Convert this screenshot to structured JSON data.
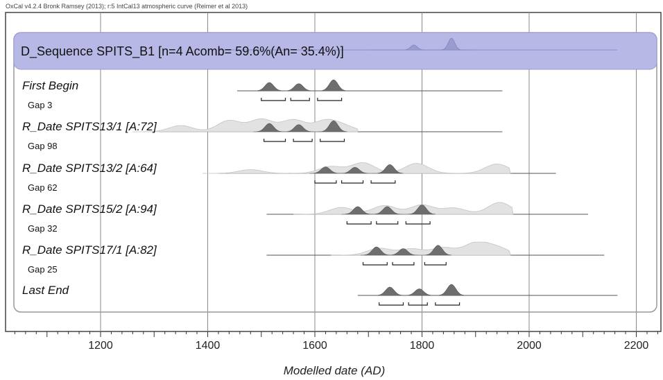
{
  "caption": "OxCal v4.2.4 Bronk Ramsey (2013); r:5 IntCal13 atmospheric curve (Reimer et al 2013)",
  "chart_data": {
    "type": "area",
    "xlabel": "Modelled date (AD)",
    "xlim": [
      1020,
      2250
    ],
    "x_ticks": [
      1200,
      1400,
      1600,
      1800,
      2000,
      2200
    ],
    "x_tick_labels": [
      "1200",
      "1400",
      "1600",
      "1800",
      "2000",
      "2200"
    ],
    "grid": true,
    "sequence": {
      "label": "D_Sequence SPITS_B1 [n=4 Acomb= 59.6%(An= 35.4%)]",
      "range": [
        1420,
        2165
      ],
      "peaks": [
        [
          1785,
          0.4
        ],
        [
          1855,
          0.95
        ]
      ]
    },
    "rows": [
      {
        "label": "First Begin",
        "gap_label": "Gap 3",
        "range": [
          1455,
          1950
        ],
        "prior": [],
        "posterior": [
          [
            1515,
            0.75
          ],
          [
            1570,
            0.65
          ],
          [
            1635,
            1.0
          ]
        ],
        "hpd": [
          [
            1500,
            1545
          ],
          [
            1555,
            1590
          ],
          [
            1605,
            1650
          ]
        ]
      },
      {
        "label": "R_Date SPITS13/1 [A:72]",
        "gap_label": "Gap 98",
        "range": [
          1310,
          1950
        ],
        "prior": [
          [
            1350,
            0.5
          ],
          [
            1440,
            0.9
          ],
          [
            1500,
            1.0
          ],
          [
            1560,
            0.95
          ],
          [
            1620,
            0.85
          ],
          [
            1655,
            0.4
          ]
        ],
        "posterior": [
          [
            1515,
            0.75
          ],
          [
            1570,
            0.65
          ],
          [
            1635,
            1.0
          ]
        ],
        "hpd": [
          [
            1505,
            1545
          ],
          [
            1560,
            1595
          ],
          [
            1610,
            1655
          ]
        ]
      },
      {
        "label": "R_Date SPITS13/2 [A:64]",
        "gap_label": "Gap 62",
        "range": [
          1420,
          2050
        ],
        "prior": [
          [
            1480,
            0.3
          ],
          [
            1630,
            0.55
          ],
          [
            1690,
            0.85
          ],
          [
            1790,
            0.8
          ],
          [
            1940,
            0.75
          ]
        ],
        "posterior": [
          [
            1620,
            0.6
          ],
          [
            1675,
            0.55
          ],
          [
            1740,
            0.8
          ]
        ],
        "hpd": [
          [
            1600,
            1640
          ],
          [
            1650,
            1690
          ],
          [
            1705,
            1750
          ]
        ]
      },
      {
        "label": "R_Date SPITS15/2 [A:94]",
        "gap_label": "Gap 32",
        "range": [
          1510,
          2110
        ],
        "prior": [
          [
            1650,
            0.55
          ],
          [
            1730,
            0.7
          ],
          [
            1800,
            0.75
          ],
          [
            1860,
            0.5
          ],
          [
            1945,
            0.95
          ]
        ],
        "posterior": [
          [
            1680,
            0.7
          ],
          [
            1735,
            0.7
          ],
          [
            1800,
            0.85
          ]
        ],
        "hpd": [
          [
            1660,
            1705
          ],
          [
            1715,
            1755
          ],
          [
            1770,
            1815
          ]
        ]
      },
      {
        "label": "R_Date SPITS17/1 [A:82]",
        "gap_label": "Gap 25",
        "range": [
          1510,
          2140
        ],
        "prior": [
          [
            1720,
            0.55
          ],
          [
            1780,
            0.5
          ],
          [
            1840,
            0.6
          ],
          [
            1900,
            0.95
          ],
          [
            1940,
            0.6
          ]
        ],
        "posterior": [
          [
            1715,
            0.75
          ],
          [
            1765,
            0.6
          ],
          [
            1830,
            0.9
          ]
        ],
        "hpd": [
          [
            1690,
            1735
          ],
          [
            1745,
            1785
          ],
          [
            1805,
            1845
          ]
        ]
      },
      {
        "label": "Last End",
        "gap_label": "",
        "range": [
          1680,
          2165
        ],
        "prior": [],
        "posterior": [
          [
            1740,
            0.75
          ],
          [
            1795,
            0.6
          ],
          [
            1855,
            1.0
          ]
        ],
        "hpd": [
          [
            1720,
            1765
          ],
          [
            1775,
            1810
          ],
          [
            1825,
            1870
          ]
        ]
      }
    ]
  }
}
